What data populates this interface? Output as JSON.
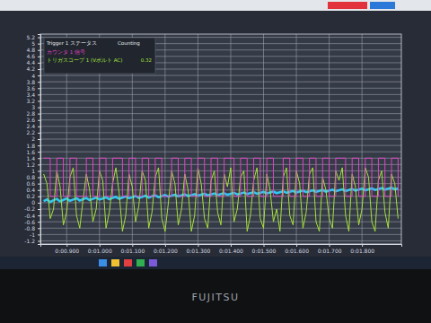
{
  "chart_data": {
    "type": "line",
    "x": [
      0.83,
      0.84,
      0.85,
      0.86,
      0.87,
      0.88,
      0.89,
      0.9,
      0.91,
      0.92,
      0.93,
      0.94,
      0.95,
      0.96,
      0.97,
      0.98,
      0.99,
      1.0,
      1.01,
      1.02,
      1.03,
      1.04,
      1.05,
      1.06,
      1.07,
      1.08,
      1.09,
      1.1,
      1.11,
      1.12,
      1.13,
      1.14,
      1.15,
      1.16,
      1.17,
      1.18,
      1.19,
      1.2,
      1.21,
      1.22,
      1.23,
      1.24,
      1.25,
      1.26,
      1.27,
      1.28,
      1.29,
      1.3,
      1.31,
      1.32,
      1.33,
      1.34,
      1.35,
      1.36,
      1.37,
      1.38,
      1.39,
      1.4,
      1.41,
      1.42,
      1.43,
      1.44,
      1.45,
      1.46,
      1.47,
      1.48,
      1.49,
      1.5,
      1.51,
      1.52,
      1.53,
      1.54,
      1.55,
      1.56,
      1.57,
      1.58,
      1.59,
      1.6,
      1.61,
      1.62,
      1.63,
      1.64,
      1.65,
      1.66,
      1.67,
      1.68,
      1.69,
      1.7,
      1.71,
      1.72,
      1.73,
      1.74,
      1.75,
      1.76,
      1.77,
      1.78,
      1.79,
      1.8,
      1.81,
      1.82,
      1.83,
      1.84,
      1.85,
      1.86,
      1.87,
      1.88,
      1.89,
      1.9,
      1.91
    ],
    "xlim": [
      0.82,
      1.92
    ],
    "xticks": [
      {
        "value": 0.9,
        "label": "0:00.900"
      },
      {
        "value": 1.0,
        "label": "0:01.000"
      },
      {
        "value": 1.1,
        "label": "0:01.100"
      },
      {
        "value": 1.2,
        "label": "0:01.200"
      },
      {
        "value": 1.3,
        "label": "0:01.300"
      },
      {
        "value": 1.4,
        "label": "0:01.400"
      },
      {
        "value": 1.5,
        "label": "0:01.500"
      },
      {
        "value": 1.6,
        "label": "0:01.600"
      },
      {
        "value": 1.7,
        "label": "0:01.700"
      },
      {
        "value": 1.8,
        "label": "0:01.800"
      }
    ],
    "ylim": [
      -1.3,
      5.3
    ],
    "yticks": [
      5.2,
      5,
      4.8,
      4.6,
      4.4,
      4.2,
      4,
      3.8,
      3.6,
      3.4,
      3.2,
      3,
      2.8,
      2.6,
      2.4,
      2.2,
      2,
      1.8,
      1.6,
      1.4,
      1.2,
      1,
      0.8,
      0.6,
      0.4,
      0.2,
      0,
      -0.2,
      -0.4,
      -0.6,
      -0.8,
      -1,
      -1.2
    ],
    "grid": true,
    "legend": "upper left",
    "annotations": [
      "Trigger 1 ステータス",
      "Counting",
      "0.32"
    ],
    "series": [
      {
        "name": "カウンタ 1 信号",
        "color": "#e046c8",
        "line_style": "step",
        "values": [
          1.4,
          1.4,
          0.2,
          0.2,
          1.4,
          1.4,
          0.2,
          0.2,
          1.4,
          1.4,
          0.2,
          0.2,
          0.2,
          1.4,
          1.4,
          0.2,
          0.2,
          1.4,
          1.4,
          0.2,
          0.2,
          1.4,
          1.4,
          1.4,
          0.2,
          0.2,
          1.4,
          1.4,
          0.2,
          0.2,
          1.4,
          1.4,
          0.2,
          0.2,
          1.4,
          1.4,
          0.2,
          0.2,
          0.2,
          1.4,
          1.4,
          0.2,
          0.2,
          1.4,
          1.4,
          0.2,
          0.2,
          1.4,
          1.4,
          0.2,
          0.2,
          1.4,
          1.4,
          0.2,
          0.2,
          1.4,
          1.4,
          1.4,
          0.2,
          0.2,
          1.4,
          1.4,
          0.2,
          0.2,
          1.4,
          1.4,
          0.2,
          0.2,
          1.4,
          1.4,
          0.2,
          0.2,
          0.2,
          1.4,
          1.4,
          0.2,
          0.2,
          1.4,
          1.4,
          0.2,
          0.2,
          1.4,
          1.4,
          0.2,
          0.2,
          1.4,
          1.4,
          0.2,
          0.2,
          1.4,
          1.4,
          1.4,
          0.2,
          0.2,
          1.4,
          1.4,
          0.2,
          0.2,
          1.4,
          1.4,
          0.2,
          0.2,
          1.4,
          1.4,
          0.2,
          0.2,
          1.4,
          1.4,
          0.2
        ]
      },
      {
        "name": "トリガスコープ 1 (Vボルト AC)",
        "color": "#a6e03c",
        "line_style": "solid",
        "values": [
          0.9,
          0.6,
          -0.5,
          -0.2,
          1.0,
          0.5,
          -0.7,
          -0.3,
          0.8,
          1.1,
          -0.4,
          -0.8,
          0.1,
          0.9,
          0.4,
          -0.6,
          -0.2,
          1.0,
          0.7,
          -0.8,
          -0.3,
          0.6,
          1.1,
          0.3,
          -0.9,
          -0.4,
          0.9,
          0.5,
          -0.6,
          -0.1,
          1.0,
          0.7,
          -0.8,
          -0.3,
          0.8,
          1.1,
          -0.5,
          -0.9,
          0.0,
          1.0,
          0.6,
          -0.7,
          -0.2,
          0.9,
          0.4,
          -0.9,
          -0.4,
          1.1,
          0.6,
          -0.5,
          -0.8,
          0.7,
          1.0,
          -0.3,
          -0.7,
          0.9,
          0.5,
          1.1,
          -0.6,
          -0.2,
          0.8,
          1.0,
          -0.9,
          -0.4,
          0.7,
          1.1,
          -0.5,
          -0.8,
          0.9,
          0.4,
          -0.6,
          -0.2,
          -0.9,
          0.8,
          1.1,
          -0.4,
          -0.7,
          1.0,
          0.6,
          -0.8,
          -0.3,
          0.9,
          1.1,
          -0.6,
          -0.9,
          0.8,
          0.4,
          -0.5,
          -0.8,
          1.0,
          0.7,
          1.1,
          -0.4,
          -0.9,
          0.9,
          0.5,
          -0.7,
          -0.2,
          1.1,
          0.8,
          -0.6,
          -0.9,
          0.7,
          1.0,
          -0.3,
          -0.8,
          0.9,
          0.6,
          -0.5
        ]
      },
      {
        "color": "#32c6f2",
        "line_style": "solid",
        "values": [
          0.05,
          0.1,
          0.02,
          0.08,
          0.12,
          0.04,
          0.09,
          0.13,
          0.06,
          0.1,
          0.14,
          0.07,
          0.11,
          0.15,
          0.08,
          0.12,
          0.16,
          0.1,
          0.13,
          0.17,
          0.11,
          0.15,
          0.18,
          0.12,
          0.16,
          0.2,
          0.14,
          0.17,
          0.21,
          0.15,
          0.18,
          0.22,
          0.16,
          0.2,
          0.23,
          0.17,
          0.21,
          0.24,
          0.19,
          0.22,
          0.25,
          0.2,
          0.23,
          0.26,
          0.21,
          0.24,
          0.27,
          0.22,
          0.25,
          0.28,
          0.23,
          0.26,
          0.29,
          0.24,
          0.27,
          0.3,
          0.25,
          0.28,
          0.31,
          0.26,
          0.29,
          0.32,
          0.27,
          0.3,
          0.33,
          0.28,
          0.31,
          0.34,
          0.29,
          0.32,
          0.35,
          0.3,
          0.33,
          0.36,
          0.31,
          0.34,
          0.37,
          0.32,
          0.35,
          0.38,
          0.33,
          0.36,
          0.39,
          0.34,
          0.37,
          0.4,
          0.35,
          0.38,
          0.41,
          0.36,
          0.39,
          0.42,
          0.37,
          0.4,
          0.43,
          0.38,
          0.41,
          0.44,
          0.39,
          0.42,
          0.45,
          0.4,
          0.43,
          0.46,
          0.41,
          0.44,
          0.47,
          0.42,
          0.45
        ]
      }
    ]
  },
  "screen": {
    "brand": "FUJITSU"
  }
}
